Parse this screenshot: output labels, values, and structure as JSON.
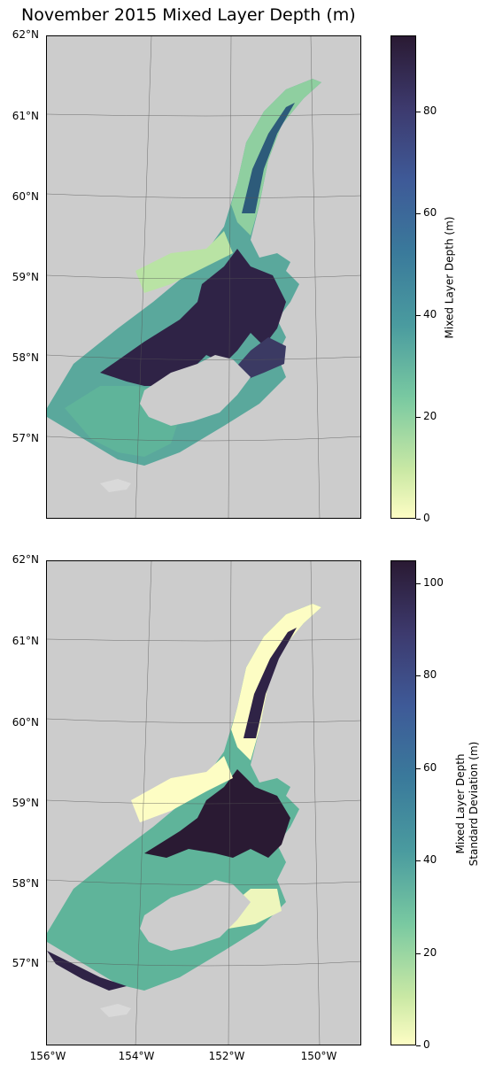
{
  "title": "November 2015 Mixed Layer Depth (m)",
  "colors": {
    "land": "#cccccc",
    "ocean_low": "#fdfdc4",
    "ocean_high": "#2a1a33",
    "grid": "#555555"
  },
  "panels": [
    {
      "name": "mixed-layer-depth",
      "lat_labels": [
        "62°N",
        "61°N",
        "60°N",
        "59°N",
        "58°N",
        "57°N"
      ],
      "colorbar": {
        "label": "Mixed Layer Depth (m)",
        "ticks": [
          "0",
          "20",
          "40",
          "60",
          "80"
        ],
        "max": 95
      }
    },
    {
      "name": "mixed-layer-depth-std",
      "lat_labels": [
        "62°N",
        "61°N",
        "60°N",
        "59°N",
        "58°N",
        "57°N"
      ],
      "lon_labels": [
        "156°W",
        "154°W",
        "152°W",
        "150°W"
      ],
      "colorbar": {
        "label_line1": "Mixed Layer Depth",
        "label_line2": "Standard Deviation (m)",
        "ticks": [
          "0",
          "20",
          "40",
          "60",
          "80",
          "100"
        ],
        "max": 105
      }
    }
  ]
}
